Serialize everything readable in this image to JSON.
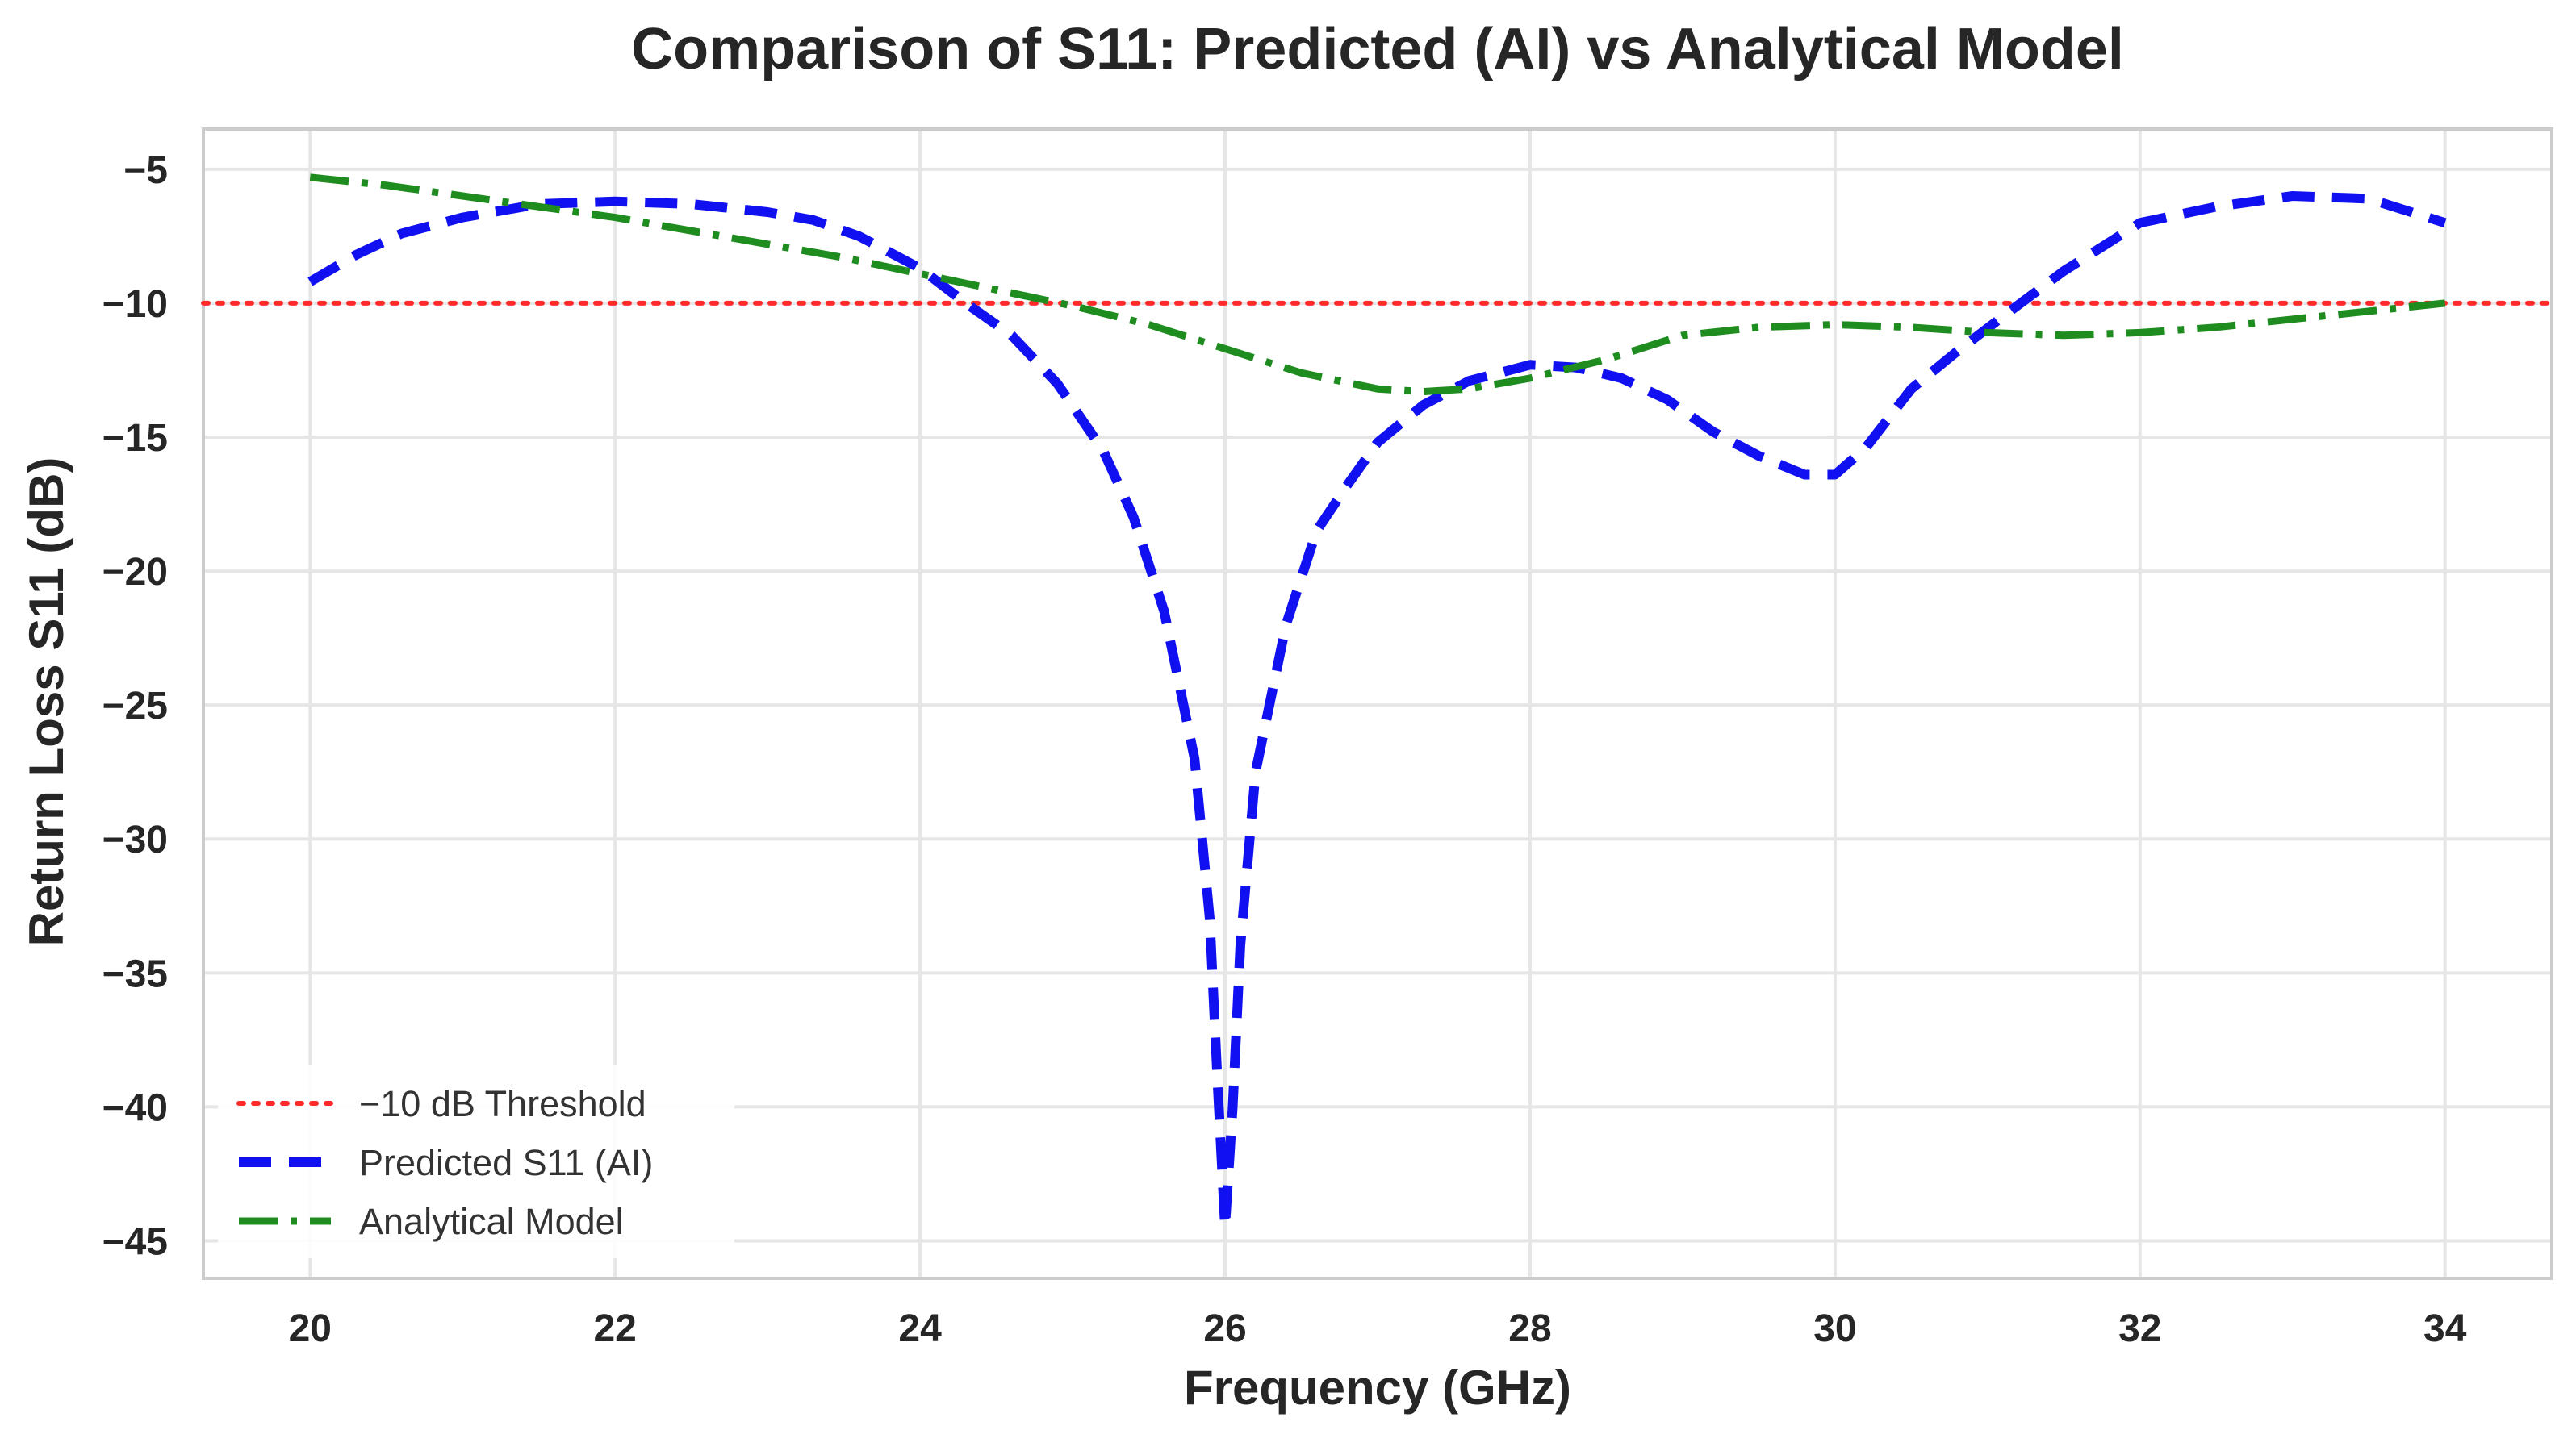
{
  "chart_data": {
    "type": "line",
    "title": "Comparison of S11: Predicted (AI) vs Analytical Model",
    "xlabel": "Frequency (GHz)",
    "ylabel": "Return Loss S11 (dB)",
    "xlim": [
      19.3,
      34.7
    ],
    "ylim": [
      -46.4,
      -3.5
    ],
    "xticks": [
      20,
      22,
      24,
      26,
      28,
      30,
      32,
      34
    ],
    "yticks": [
      -5,
      -10,
      -15,
      -20,
      -25,
      -30,
      -35,
      -40,
      -45
    ],
    "xtick_labels": [
      "20",
      "22",
      "24",
      "26",
      "28",
      "30",
      "32",
      "34"
    ],
    "ytick_labels": [
      "−5",
      "−10",
      "−15",
      "−20",
      "−25",
      "−30",
      "−35",
      "−40",
      "−45"
    ],
    "grid": true,
    "legend_position": "bottom-left",
    "series": [
      {
        "name": "−10 dB Threshold",
        "style": "dotted",
        "color": "#ff2b2b",
        "x": [
          19.3,
          34.7
        ],
        "y": [
          -10,
          -10
        ]
      },
      {
        "name": "Predicted S11 (AI)",
        "style": "dashed",
        "color": "#1010f0",
        "x": [
          20.0,
          20.3,
          20.6,
          21.0,
          21.5,
          22.0,
          22.5,
          23.0,
          23.3,
          23.6,
          24.0,
          24.3,
          24.6,
          24.9,
          25.2,
          25.4,
          25.6,
          25.8,
          25.9,
          25.95,
          26.0,
          26.05,
          26.1,
          26.2,
          26.4,
          26.6,
          26.8,
          27.0,
          27.3,
          27.6,
          28.0,
          28.3,
          28.6,
          28.9,
          29.2,
          29.5,
          29.8,
          30.0,
          30.2,
          30.5,
          30.8,
          31.1,
          31.5,
          32.0,
          32.5,
          33.0,
          33.5,
          34.0
        ],
        "y": [
          -9.2,
          -8.2,
          -7.4,
          -6.8,
          -6.3,
          -6.2,
          -6.3,
          -6.6,
          -6.9,
          -7.5,
          -8.7,
          -10.0,
          -11.2,
          -13.0,
          -15.5,
          -18.0,
          -21.5,
          -27.0,
          -33.0,
          -39.0,
          -44.5,
          -40.0,
          -34.0,
          -27.5,
          -22.0,
          -18.5,
          -16.8,
          -15.2,
          -13.8,
          -12.9,
          -12.3,
          -12.4,
          -12.8,
          -13.6,
          -14.8,
          -15.7,
          -16.4,
          -16.4,
          -15.4,
          -13.2,
          -11.8,
          -10.5,
          -8.8,
          -7.0,
          -6.4,
          -6.0,
          -6.1,
          -7.0
        ]
      },
      {
        "name": "Analytical Model",
        "style": "dashdot",
        "color": "#1f8c1f",
        "x": [
          20.0,
          20.5,
          21.0,
          21.5,
          22.0,
          22.5,
          23.0,
          23.5,
          24.0,
          24.5,
          25.0,
          25.5,
          26.0,
          26.5,
          27.0,
          27.3,
          27.6,
          28.0,
          28.5,
          29.0,
          29.5,
          30.0,
          30.5,
          31.0,
          31.5,
          32.0,
          32.5,
          33.0,
          33.5,
          34.0
        ],
        "y": [
          -5.3,
          -5.6,
          -6.0,
          -6.4,
          -6.8,
          -7.3,
          -7.8,
          -8.3,
          -8.9,
          -9.5,
          -10.1,
          -10.8,
          -11.7,
          -12.6,
          -13.2,
          -13.3,
          -13.2,
          -12.8,
          -12.1,
          -11.2,
          -10.9,
          -10.8,
          -10.9,
          -11.1,
          -11.2,
          -11.1,
          -10.9,
          -10.6,
          -10.3,
          -10.0
        ]
      }
    ]
  }
}
